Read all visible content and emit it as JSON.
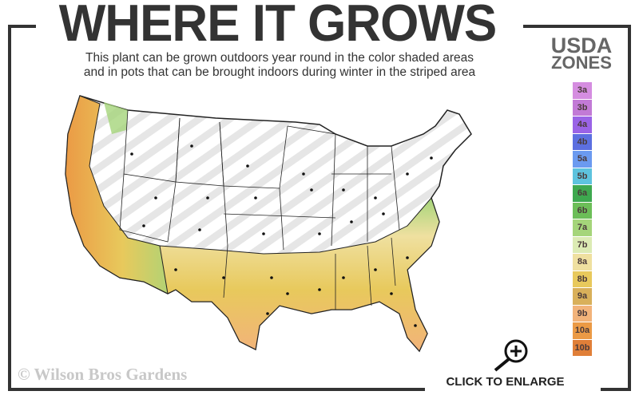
{
  "header": {
    "title": "WHERE IT GROWS",
    "subtitle_line1": "This plant can be grown outdoors year round in the color shaded areas",
    "subtitle_line2": "and in pots that can be brought indoors during winter in the striped area"
  },
  "legend": {
    "title_line1": "USDA",
    "title_line2": "ZONES",
    "zones": [
      {
        "label": "3a",
        "color": "#d58de0"
      },
      {
        "label": "3b",
        "color": "#c27ad6"
      },
      {
        "label": "4a",
        "color": "#9a63e6"
      },
      {
        "label": "4b",
        "color": "#5c6fe0"
      },
      {
        "label": "5a",
        "color": "#6b9af0"
      },
      {
        "label": "5b",
        "color": "#5ec3de"
      },
      {
        "label": "6a",
        "color": "#3ea84f"
      },
      {
        "label": "6b",
        "color": "#6cbe58"
      },
      {
        "label": "7a",
        "color": "#a5d57a"
      },
      {
        "label": "7b",
        "color": "#dcebb4"
      },
      {
        "label": "8a",
        "color": "#efe0a0"
      },
      {
        "label": "8b",
        "color": "#e8c95c"
      },
      {
        "label": "9a",
        "color": "#d9b05a"
      },
      {
        "label": "9b",
        "color": "#f2b37a"
      },
      {
        "label": "10a",
        "color": "#eb9a45"
      },
      {
        "label": "10b",
        "color": "#e07f38"
      }
    ]
  },
  "map": {
    "shaded_zones": "6a–10b",
    "striped_zones": "3a–5b"
  },
  "footer": {
    "copyright": "© Wilson Bros Gardens",
    "enlarge_label": "CLICK TO ENLARGE",
    "enlarge_icon": "zoom-in-icon"
  }
}
